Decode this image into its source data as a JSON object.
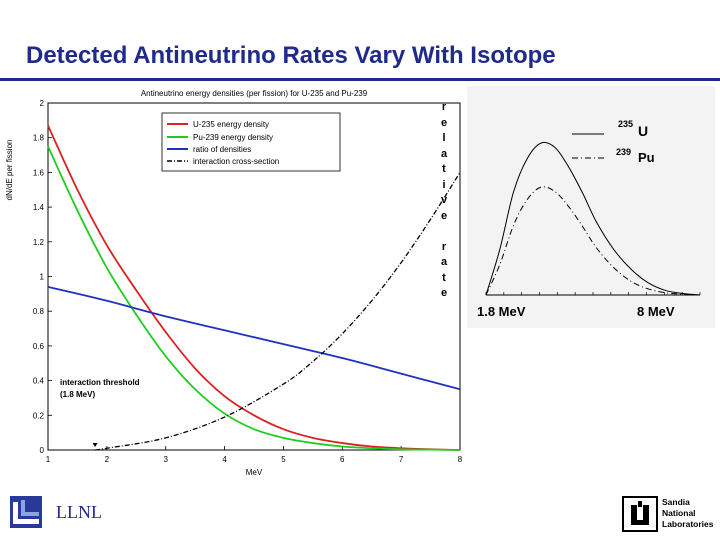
{
  "slide": {
    "title": "Detected Antineutrino Rates Vary With Isotope",
    "footer_left": "LLNL",
    "footer_right_lines": [
      "Sandia",
      "National",
      "Laboratories"
    ]
  },
  "colors": {
    "title": "#1f2a8c",
    "u235": "#dd2020",
    "pu239": "#20cc20",
    "ratio": "#2030c0",
    "cross_section": "#000000"
  },
  "chart_data": [
    {
      "type": "line",
      "title": "Antineutrino energy densities (per fission) for U-235 and Pu-239",
      "xlabel": "MeV",
      "ylabel": "dN/dE per fission",
      "xlim": [
        1,
        8
      ],
      "ylim": [
        0,
        2
      ],
      "xticks": [
        1,
        2,
        3,
        4,
        5,
        6,
        7,
        8
      ],
      "yticks": [
        0,
        0.2,
        0.4,
        0.6,
        0.8,
        1,
        1.2,
        1.4,
        1.6,
        1.8,
        2
      ],
      "ytick_labels": [
        "0",
        "0.2",
        "0.4",
        "0.6",
        "0.8",
        "1",
        "1.2",
        "1.4",
        "1.6",
        "1.8",
        "2"
      ],
      "legend": {
        "position": "top-right",
        "entries": [
          "U-235 energy density",
          "Pu-239 energy density",
          "ratio of densities",
          "interaction cross-section"
        ]
      },
      "annotation": {
        "line1": "interaction threshold",
        "line2": "(1.8 MeV)"
      },
      "series": [
        {
          "name": "U-235 energy density",
          "style": "solid",
          "x": [
            1,
            1.5,
            2,
            2.5,
            3,
            3.5,
            4,
            4.5,
            5,
            5.5,
            6,
            6.5,
            7,
            7.5,
            8
          ],
          "y": [
            1.87,
            1.5,
            1.18,
            0.92,
            0.68,
            0.47,
            0.31,
            0.2,
            0.12,
            0.07,
            0.04,
            0.02,
            0.01,
            0.004,
            0
          ]
        },
        {
          "name": "Pu-239 energy density",
          "style": "solid",
          "x": [
            1,
            1.5,
            2,
            2.5,
            3,
            3.5,
            4,
            4.5,
            5,
            5.5,
            6,
            6.5,
            7,
            7.5,
            8
          ],
          "y": [
            1.75,
            1.38,
            1.05,
            0.78,
            0.54,
            0.35,
            0.21,
            0.12,
            0.07,
            0.04,
            0.02,
            0.01,
            0.004,
            0.002,
            0
          ]
        },
        {
          "name": "ratio of densities",
          "style": "solid",
          "x": [
            1,
            2,
            3,
            4,
            5,
            6,
            7,
            8
          ],
          "y": [
            0.94,
            0.86,
            0.77,
            0.69,
            0.61,
            0.53,
            0.44,
            0.35
          ]
        },
        {
          "name": "interaction cross-section",
          "style": "dashdot",
          "x": [
            1.8,
            2,
            3,
            4,
            5,
            5.5,
            6,
            6.5,
            7,
            7.5,
            8
          ],
          "y": [
            0,
            0.01,
            0.07,
            0.19,
            0.38,
            0.51,
            0.67,
            0.86,
            1.08,
            1.33,
            1.6
          ]
        }
      ]
    },
    {
      "type": "line",
      "title": "",
      "ylabel": "relative rate",
      "ylabel_chars": [
        "r",
        "e",
        "l",
        "a",
        "t",
        "i",
        "v",
        "e",
        "",
        "r",
        "a",
        "t",
        "e"
      ],
      "xlabel_left": "1.8 MeV",
      "xlabel_right": "8 MeV",
      "xlim": [
        1.8,
        8
      ],
      "ylim": [
        0,
        1
      ],
      "legend": {
        "position": "top-right",
        "entries": [
          {
            "sup": "235",
            "name": "U",
            "style": "solid"
          },
          {
            "sup": "239",
            "name": "Pu",
            "style": "dashdot"
          }
        ]
      },
      "series": [
        {
          "name": "235U",
          "style": "solid",
          "x": [
            1.8,
            2.2,
            2.6,
            3,
            3.4,
            3.8,
            4.2,
            4.6,
            5,
            5.5,
            6,
            6.5,
            7,
            7.5,
            8
          ],
          "y": [
            0,
            0.3,
            0.68,
            0.9,
            1.0,
            0.97,
            0.84,
            0.67,
            0.48,
            0.3,
            0.17,
            0.08,
            0.03,
            0.01,
            0
          ]
        },
        {
          "name": "239Pu",
          "style": "dashdot",
          "x": [
            1.8,
            2.2,
            2.6,
            3,
            3.4,
            3.8,
            4.2,
            4.6,
            5,
            5.5,
            6,
            6.5,
            7,
            7.5,
            8
          ],
          "y": [
            0,
            0.2,
            0.46,
            0.63,
            0.71,
            0.68,
            0.58,
            0.45,
            0.31,
            0.18,
            0.09,
            0.04,
            0.015,
            0.005,
            0
          ]
        }
      ]
    }
  ]
}
